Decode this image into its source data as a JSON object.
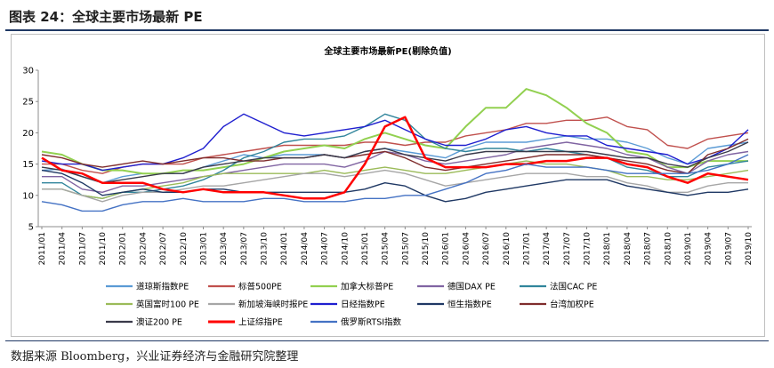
{
  "figure": {
    "title": "图表 24：全球主要市场最新 PE",
    "source": "数据来源 Bloomberg，兴业证券经济与金融研究院整理"
  },
  "chart_data": {
    "type": "line",
    "title": "全球主要市场最新PE(剔除负值)",
    "xlabel": "",
    "ylabel": "",
    "ylim": [
      5,
      30
    ],
    "yticks": [
      5,
      10,
      15,
      20,
      25,
      30
    ],
    "x": [
      "2011/01",
      "2011/04",
      "2011/07",
      "2011/10",
      "2012/01",
      "2012/04",
      "2012/07",
      "2012/10",
      "2013/01",
      "2013/04",
      "2013/07",
      "2013/10",
      "2014/01",
      "2014/04",
      "2014/07",
      "2014/10",
      "2015/01",
      "2015/04",
      "2015/07",
      "2015/10",
      "2016/01",
      "2016/04",
      "2016/07",
      "2016/10",
      "2017/01",
      "2017/04",
      "2017/07",
      "2017/10",
      "2018/01",
      "2018/04",
      "2018/07",
      "2018/10",
      "2019/01",
      "2019/04",
      "2019/07",
      "2019/10"
    ],
    "grid": false,
    "legend_position": "bottom",
    "series": [
      {
        "name": "道琼斯指数PE",
        "color": "#5b9bd5",
        "values": [
          14.0,
          14.2,
          13.0,
          12.0,
          13.0,
          13.5,
          13.5,
          13.5,
          14.5,
          15.5,
          16.5,
          16.0,
          16.5,
          16.5,
          16.5,
          16.0,
          17.0,
          17.5,
          17.0,
          16.5,
          16.0,
          17.5,
          18.5,
          18.5,
          18.5,
          19.0,
          19.5,
          19.0,
          19.0,
          18.5,
          17.5,
          16.0,
          15.0,
          17.5,
          18.0,
          18.5
        ]
      },
      {
        "name": "标普500PE",
        "color": "#c0504d",
        "values": [
          15.0,
          15.0,
          14.0,
          13.5,
          14.5,
          15.0,
          15.0,
          15.0,
          16.0,
          16.5,
          17.0,
          17.5,
          18.0,
          18.0,
          18.0,
          18.0,
          18.5,
          18.5,
          18.0,
          18.5,
          18.5,
          19.5,
          20.0,
          20.5,
          21.5,
          21.5,
          22.0,
          22.0,
          22.5,
          21.0,
          20.5,
          18.0,
          17.5,
          19.0,
          19.5,
          20.0
        ]
      },
      {
        "name": "加拿大标普PE",
        "color": "#92d050",
        "values": [
          17.0,
          16.5,
          15.0,
          14.0,
          14.0,
          13.5,
          13.5,
          14.0,
          14.0,
          14.5,
          15.0,
          16.0,
          17.0,
          17.5,
          18.0,
          17.5,
          19.0,
          20.0,
          19.0,
          18.0,
          17.5,
          21.0,
          24.0,
          24.0,
          27.0,
          26.0,
          24.0,
          21.5,
          20.0,
          17.0,
          16.5,
          14.5,
          14.5,
          15.5,
          15.5,
          15.5
        ]
      },
      {
        "name": "德国DAX PE",
        "color": "#8064a2",
        "values": [
          13.0,
          13.0,
          11.0,
          10.5,
          11.5,
          11.5,
          12.0,
          12.5,
          13.0,
          13.5,
          14.0,
          14.5,
          15.0,
          15.0,
          15.0,
          14.5,
          15.5,
          17.0,
          16.5,
          15.5,
          15.0,
          15.5,
          16.0,
          16.5,
          17.5,
          18.0,
          18.5,
          18.0,
          17.5,
          16.5,
          16.0,
          14.5,
          13.5,
          15.5,
          16.5,
          17.0
        ]
      },
      {
        "name": "法国CAC PE",
        "color": "#31859c",
        "values": [
          12.0,
          12.0,
          10.0,
          9.5,
          10.5,
          10.5,
          11.0,
          11.5,
          12.5,
          14.0,
          16.0,
          17.0,
          18.5,
          19.0,
          19.0,
          19.5,
          21.0,
          23.0,
          22.0,
          19.0,
          17.5,
          17.0,
          17.5,
          17.5,
          17.0,
          17.5,
          17.0,
          16.5,
          16.0,
          14.5,
          14.0,
          13.0,
          13.0,
          14.5,
          15.0,
          15.5
        ]
      },
      {
        "name": "英国富时100 PE",
        "color": "#9bbb59",
        "values": [
          11.0,
          11.0,
          10.0,
          9.5,
          10.5,
          11.0,
          11.5,
          12.0,
          13.0,
          13.5,
          13.5,
          13.5,
          13.5,
          13.5,
          14.0,
          13.5,
          14.0,
          14.5,
          14.0,
          13.5,
          13.5,
          14.0,
          14.5,
          15.0,
          15.5,
          15.0,
          15.0,
          14.5,
          14.0,
          13.0,
          13.0,
          12.5,
          12.5,
          13.0,
          13.5,
          14.0
        ]
      },
      {
        "name": "新加坡海峡时报PE",
        "color": "#a6a6a6",
        "values": [
          11.0,
          11.0,
          10.0,
          9.0,
          10.0,
          10.5,
          10.5,
          11.0,
          11.5,
          11.5,
          12.0,
          12.5,
          13.0,
          13.5,
          13.5,
          13.0,
          13.5,
          14.0,
          13.5,
          12.5,
          11.5,
          12.0,
          12.5,
          13.0,
          13.5,
          13.5,
          13.5,
          13.0,
          13.0,
          12.0,
          11.5,
          10.5,
          10.5,
          11.5,
          12.0,
          12.0
        ]
      },
      {
        "name": "日经指数PE",
        "color": "#1f1fcf",
        "values": [
          15.5,
          15.0,
          15.0,
          14.0,
          14.5,
          15.0,
          15.0,
          16.0,
          17.5,
          21.0,
          23.0,
          21.5,
          20.0,
          19.5,
          20.0,
          20.5,
          21.0,
          22.0,
          20.5,
          19.0,
          18.0,
          18.0,
          19.0,
          20.5,
          21.0,
          20.0,
          19.5,
          19.5,
          18.0,
          17.5,
          17.0,
          16.5,
          15.0,
          16.0,
          17.5,
          20.5
        ]
      },
      {
        "name": "恒生指数PE",
        "color": "#1f3864",
        "values": [
          14.0,
          13.5,
          12.0,
          10.0,
          10.5,
          11.0,
          10.5,
          10.5,
          11.0,
          11.0,
          10.5,
          10.5,
          10.5,
          10.5,
          10.5,
          10.5,
          11.0,
          12.0,
          11.5,
          10.0,
          9.0,
          9.5,
          10.5,
          11.0,
          11.5,
          12.0,
          12.5,
          12.5,
          12.5,
          11.5,
          11.0,
          10.5,
          10.0,
          10.5,
          10.5,
          11.0
        ]
      },
      {
        "name": "台湾加权PE",
        "color": "#7f2c2c",
        "values": [
          16.5,
          16.0,
          15.0,
          14.5,
          15.0,
          15.5,
          15.0,
          15.5,
          16.0,
          16.0,
          15.5,
          15.5,
          16.0,
          16.0,
          16.5,
          16.0,
          16.5,
          17.0,
          16.0,
          14.5,
          14.0,
          14.5,
          15.0,
          15.5,
          16.0,
          16.5,
          16.5,
          16.5,
          16.0,
          15.5,
          15.0,
          14.0,
          13.5,
          16.5,
          17.5,
          19.0
        ]
      },
      {
        "name": "澳证200 PE",
        "color": "#3a3a4a",
        "values": [
          14.5,
          14.0,
          13.0,
          12.0,
          12.5,
          13.0,
          13.5,
          13.5,
          14.5,
          15.0,
          15.5,
          16.0,
          16.0,
          16.0,
          16.5,
          16.0,
          17.0,
          17.5,
          16.5,
          16.0,
          15.5,
          16.5,
          17.0,
          17.0,
          17.0,
          17.0,
          17.0,
          17.0,
          16.5,
          16.0,
          16.0,
          15.0,
          14.5,
          16.0,
          17.0,
          18.5
        ]
      },
      {
        "name": "上证综指PE",
        "color": "#ff0000",
        "values": [
          16.0,
          14.0,
          13.5,
          12.0,
          12.0,
          12.0,
          11.0,
          10.5,
          11.0,
          10.5,
          10.5,
          10.5,
          10.0,
          9.5,
          9.5,
          10.5,
          15.0,
          21.0,
          22.5,
          16.0,
          14.5,
          14.5,
          14.5,
          15.0,
          15.0,
          15.5,
          15.5,
          16.0,
          16.0,
          15.0,
          14.5,
          13.0,
          12.0,
          13.5,
          13.0,
          12.5
        ]
      },
      {
        "name": "俄罗斯RTSI指数",
        "color": "#4472c4",
        "values": [
          9.0,
          8.5,
          7.5,
          7.5,
          8.5,
          9.0,
          9.0,
          9.5,
          9.0,
          9.0,
          9.0,
          9.5,
          9.5,
          9.0,
          9.0,
          9.0,
          9.5,
          9.5,
          10.0,
          10.0,
          11.0,
          12.0,
          13.5,
          14.0,
          15.0,
          14.5,
          14.5,
          14.5,
          14.0,
          13.5,
          13.5,
          13.5,
          13.5,
          14.0,
          15.0,
          16.5
        ]
      }
    ]
  }
}
